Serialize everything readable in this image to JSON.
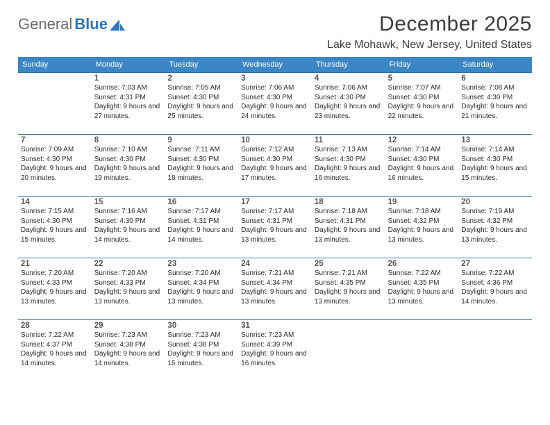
{
  "logo": {
    "general": "General",
    "blue": "Blue"
  },
  "title": "December 2025",
  "location": "Lake Mohawk, New Jersey, United States",
  "colors": {
    "header_bg": "#3b86c6",
    "header_text": "#ffffff",
    "rule": "#2f6fa8",
    "body_text": "#2b2b2b",
    "title_text": "#3d3d3d",
    "logo_general": "#666b6e",
    "logo_blue": "#2f78bf",
    "background": "#ffffff"
  },
  "dow": [
    "Sunday",
    "Monday",
    "Tuesday",
    "Wednesday",
    "Thursday",
    "Friday",
    "Saturday"
  ],
  "weeks": [
    [
      {
        "n": "",
        "sr": "",
        "ss": "",
        "dl": ""
      },
      {
        "n": "1",
        "sr": "Sunrise: 7:03 AM",
        "ss": "Sunset: 4:31 PM",
        "dl": "Daylight: 9 hours and 27 minutes."
      },
      {
        "n": "2",
        "sr": "Sunrise: 7:05 AM",
        "ss": "Sunset: 4:30 PM",
        "dl": "Daylight: 9 hours and 25 minutes."
      },
      {
        "n": "3",
        "sr": "Sunrise: 7:06 AM",
        "ss": "Sunset: 4:30 PM",
        "dl": "Daylight: 9 hours and 24 minutes."
      },
      {
        "n": "4",
        "sr": "Sunrise: 7:06 AM",
        "ss": "Sunset: 4:30 PM",
        "dl": "Daylight: 9 hours and 23 minutes."
      },
      {
        "n": "5",
        "sr": "Sunrise: 7:07 AM",
        "ss": "Sunset: 4:30 PM",
        "dl": "Daylight: 9 hours and 22 minutes."
      },
      {
        "n": "6",
        "sr": "Sunrise: 7:08 AM",
        "ss": "Sunset: 4:30 PM",
        "dl": "Daylight: 9 hours and 21 minutes."
      }
    ],
    [
      {
        "n": "7",
        "sr": "Sunrise: 7:09 AM",
        "ss": "Sunset: 4:30 PM",
        "dl": "Daylight: 9 hours and 20 minutes."
      },
      {
        "n": "8",
        "sr": "Sunrise: 7:10 AM",
        "ss": "Sunset: 4:30 PM",
        "dl": "Daylight: 9 hours and 19 minutes."
      },
      {
        "n": "9",
        "sr": "Sunrise: 7:11 AM",
        "ss": "Sunset: 4:30 PM",
        "dl": "Daylight: 9 hours and 18 minutes."
      },
      {
        "n": "10",
        "sr": "Sunrise: 7:12 AM",
        "ss": "Sunset: 4:30 PM",
        "dl": "Daylight: 9 hours and 17 minutes."
      },
      {
        "n": "11",
        "sr": "Sunrise: 7:13 AM",
        "ss": "Sunset: 4:30 PM",
        "dl": "Daylight: 9 hours and 16 minutes."
      },
      {
        "n": "12",
        "sr": "Sunrise: 7:14 AM",
        "ss": "Sunset: 4:30 PM",
        "dl": "Daylight: 9 hours and 16 minutes."
      },
      {
        "n": "13",
        "sr": "Sunrise: 7:14 AM",
        "ss": "Sunset: 4:30 PM",
        "dl": "Daylight: 9 hours and 15 minutes."
      }
    ],
    [
      {
        "n": "14",
        "sr": "Sunrise: 7:15 AM",
        "ss": "Sunset: 4:30 PM",
        "dl": "Daylight: 9 hours and 15 minutes."
      },
      {
        "n": "15",
        "sr": "Sunrise: 7:16 AM",
        "ss": "Sunset: 4:30 PM",
        "dl": "Daylight: 9 hours and 14 minutes."
      },
      {
        "n": "16",
        "sr": "Sunrise: 7:17 AM",
        "ss": "Sunset: 4:31 PM",
        "dl": "Daylight: 9 hours and 14 minutes."
      },
      {
        "n": "17",
        "sr": "Sunrise: 7:17 AM",
        "ss": "Sunset: 4:31 PM",
        "dl": "Daylight: 9 hours and 13 minutes."
      },
      {
        "n": "18",
        "sr": "Sunrise: 7:18 AM",
        "ss": "Sunset: 4:31 PM",
        "dl": "Daylight: 9 hours and 13 minutes."
      },
      {
        "n": "19",
        "sr": "Sunrise: 7:18 AM",
        "ss": "Sunset: 4:32 PM",
        "dl": "Daylight: 9 hours and 13 minutes."
      },
      {
        "n": "20",
        "sr": "Sunrise: 7:19 AM",
        "ss": "Sunset: 4:32 PM",
        "dl": "Daylight: 9 hours and 13 minutes."
      }
    ],
    [
      {
        "n": "21",
        "sr": "Sunrise: 7:20 AM",
        "ss": "Sunset: 4:33 PM",
        "dl": "Daylight: 9 hours and 13 minutes."
      },
      {
        "n": "22",
        "sr": "Sunrise: 7:20 AM",
        "ss": "Sunset: 4:33 PM",
        "dl": "Daylight: 9 hours and 13 minutes."
      },
      {
        "n": "23",
        "sr": "Sunrise: 7:20 AM",
        "ss": "Sunset: 4:34 PM",
        "dl": "Daylight: 9 hours and 13 minutes."
      },
      {
        "n": "24",
        "sr": "Sunrise: 7:21 AM",
        "ss": "Sunset: 4:34 PM",
        "dl": "Daylight: 9 hours and 13 minutes."
      },
      {
        "n": "25",
        "sr": "Sunrise: 7:21 AM",
        "ss": "Sunset: 4:35 PM",
        "dl": "Daylight: 9 hours and 13 minutes."
      },
      {
        "n": "26",
        "sr": "Sunrise: 7:22 AM",
        "ss": "Sunset: 4:35 PM",
        "dl": "Daylight: 9 hours and 13 minutes."
      },
      {
        "n": "27",
        "sr": "Sunrise: 7:22 AM",
        "ss": "Sunset: 4:36 PM",
        "dl": "Daylight: 9 hours and 14 minutes."
      }
    ],
    [
      {
        "n": "28",
        "sr": "Sunrise: 7:22 AM",
        "ss": "Sunset: 4:37 PM",
        "dl": "Daylight: 9 hours and 14 minutes."
      },
      {
        "n": "29",
        "sr": "Sunrise: 7:23 AM",
        "ss": "Sunset: 4:38 PM",
        "dl": "Daylight: 9 hours and 14 minutes."
      },
      {
        "n": "30",
        "sr": "Sunrise: 7:23 AM",
        "ss": "Sunset: 4:38 PM",
        "dl": "Daylight: 9 hours and 15 minutes."
      },
      {
        "n": "31",
        "sr": "Sunrise: 7:23 AM",
        "ss": "Sunset: 4:39 PM",
        "dl": "Daylight: 9 hours and 16 minutes."
      },
      {
        "n": "",
        "sr": "",
        "ss": "",
        "dl": ""
      },
      {
        "n": "",
        "sr": "",
        "ss": "",
        "dl": ""
      },
      {
        "n": "",
        "sr": "",
        "ss": "",
        "dl": ""
      }
    ]
  ]
}
